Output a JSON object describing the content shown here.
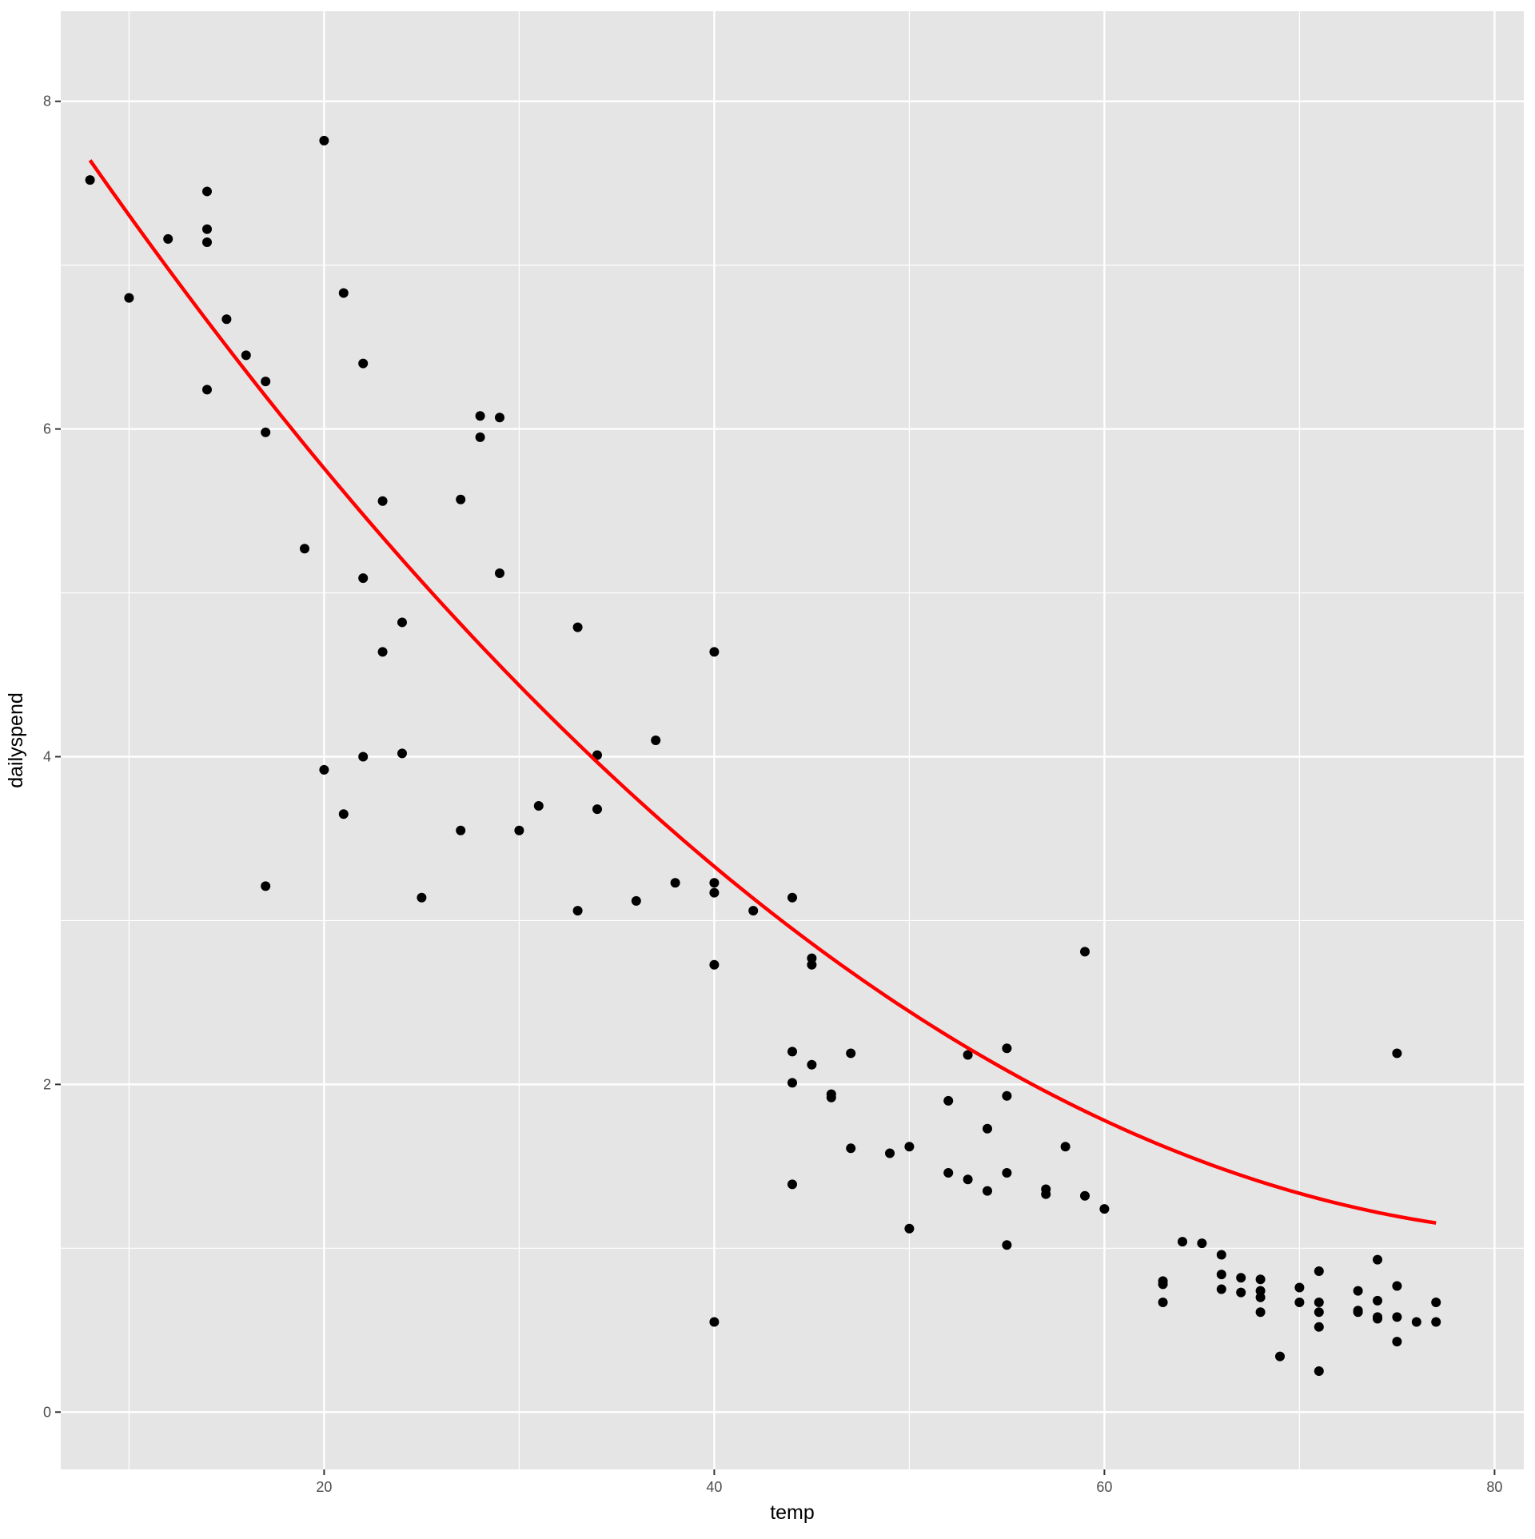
{
  "chart_data": {
    "type": "scatter",
    "title": "",
    "xlabel": "temp",
    "ylabel": "dailyspend",
    "xlim": [
      6.5,
      81.5
    ],
    "ylim": [
      -0.35,
      8.55
    ],
    "x_ticks": [
      20,
      40,
      60,
      80
    ],
    "y_ticks": [
      0,
      2,
      4,
      6,
      8
    ],
    "grid": true,
    "panel_background": "#e5e5e5",
    "grid_color": "#ffffff",
    "point_color": "#000000",
    "line_color": "#ff0000",
    "points": [
      [
        8,
        7.52
      ],
      [
        10,
        6.8
      ],
      [
        12,
        7.16
      ],
      [
        14,
        7.45
      ],
      [
        14,
        7.22
      ],
      [
        14,
        7.14
      ],
      [
        14,
        6.24
      ],
      [
        15,
        6.67
      ],
      [
        16,
        6.45
      ],
      [
        17,
        6.29
      ],
      [
        17,
        5.98
      ],
      [
        17,
        3.21
      ],
      [
        19,
        5.27
      ],
      [
        20,
        7.76
      ],
      [
        20,
        3.92
      ],
      [
        21,
        6.83
      ],
      [
        21,
        3.65
      ],
      [
        22,
        6.4
      ],
      [
        22,
        5.09
      ],
      [
        22,
        4.0
      ],
      [
        23,
        5.56
      ],
      [
        23,
        4.64
      ],
      [
        24,
        4.82
      ],
      [
        24,
        4.02
      ],
      [
        25,
        3.14
      ],
      [
        27,
        5.57
      ],
      [
        27,
        3.55
      ],
      [
        28,
        6.08
      ],
      [
        28,
        5.95
      ],
      [
        29,
        6.07
      ],
      [
        29,
        5.12
      ],
      [
        30,
        3.55
      ],
      [
        31,
        3.7
      ],
      [
        33,
        4.79
      ],
      [
        33,
        3.06
      ],
      [
        34,
        4.01
      ],
      [
        34,
        3.68
      ],
      [
        36,
        3.12
      ],
      [
        37,
        4.1
      ],
      [
        38,
        3.23
      ],
      [
        40,
        4.64
      ],
      [
        40,
        3.23
      ],
      [
        40,
        3.17
      ],
      [
        40,
        2.73
      ],
      [
        40,
        0.55
      ],
      [
        42,
        3.06
      ],
      [
        44,
        3.14
      ],
      [
        44,
        2.2
      ],
      [
        44,
        2.01
      ],
      [
        44,
        1.39
      ],
      [
        45,
        2.77
      ],
      [
        45,
        2.73
      ],
      [
        45,
        2.12
      ],
      [
        46,
        1.94
      ],
      [
        46,
        1.92
      ],
      [
        47,
        2.19
      ],
      [
        47,
        1.61
      ],
      [
        49,
        1.58
      ],
      [
        50,
        1.62
      ],
      [
        50,
        1.12
      ],
      [
        52,
        1.9
      ],
      [
        52,
        1.46
      ],
      [
        53,
        2.18
      ],
      [
        53,
        1.42
      ],
      [
        54,
        1.73
      ],
      [
        54,
        1.35
      ],
      [
        55,
        2.22
      ],
      [
        55,
        1.93
      ],
      [
        55,
        1.46
      ],
      [
        55,
        1.02
      ],
      [
        57,
        1.36
      ],
      [
        57,
        1.33
      ],
      [
        58,
        1.62
      ],
      [
        59,
        2.81
      ],
      [
        59,
        1.32
      ],
      [
        60,
        1.24
      ],
      [
        63,
        0.8
      ],
      [
        63,
        0.78
      ],
      [
        63,
        0.67
      ],
      [
        64,
        1.04
      ],
      [
        65,
        1.03
      ],
      [
        66,
        0.96
      ],
      [
        66,
        0.84
      ],
      [
        66,
        0.75
      ],
      [
        67,
        0.82
      ],
      [
        67,
        0.73
      ],
      [
        68,
        0.81
      ],
      [
        68,
        0.74
      ],
      [
        68,
        0.7
      ],
      [
        68,
        0.61
      ],
      [
        69,
        0.34
      ],
      [
        70,
        0.76
      ],
      [
        70,
        0.67
      ],
      [
        71,
        0.86
      ],
      [
        71,
        0.67
      ],
      [
        71,
        0.61
      ],
      [
        71,
        0.52
      ],
      [
        71,
        0.25
      ],
      [
        73,
        0.74
      ],
      [
        73,
        0.62
      ],
      [
        73,
        0.61
      ],
      [
        74,
        0.93
      ],
      [
        74,
        0.68
      ],
      [
        74,
        0.58
      ],
      [
        74,
        0.57
      ],
      [
        75,
        2.19
      ],
      [
        75,
        0.77
      ],
      [
        75,
        0.58
      ],
      [
        75,
        0.43
      ],
      [
        76,
        0.55
      ],
      [
        77,
        0.67
      ],
      [
        77,
        0.55
      ]
    ],
    "fit_curve": {
      "type": "quadratic",
      "x_range": [
        8,
        77
      ],
      "coefficients": {
        "a": 0.0011,
        "b": -0.1875,
        "c": 9.07
      }
    }
  }
}
